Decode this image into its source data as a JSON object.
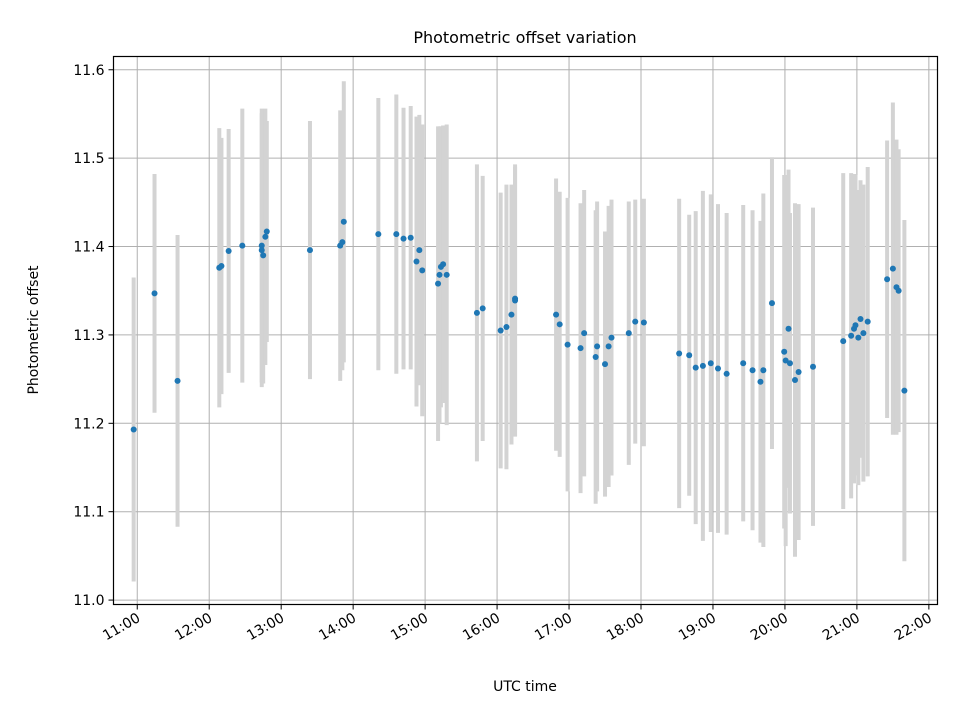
{
  "chart_data": {
    "type": "scatter",
    "title": "Photometric offset variation",
    "xlabel": "UTC time",
    "ylabel": "Photometric offset",
    "x_format": "HH:MM (hours UTC)",
    "xlim": [
      10.67,
      22.12
    ],
    "ylim": [
      10.995,
      11.615
    ],
    "x_ticks": [
      11,
      12,
      13,
      14,
      15,
      16,
      17,
      18,
      19,
      20,
      21,
      22
    ],
    "x_tick_labels": [
      "11:00",
      "12:00",
      "13:00",
      "14:00",
      "15:00",
      "16:00",
      "17:00",
      "18:00",
      "19:00",
      "20:00",
      "21:00",
      "22:00"
    ],
    "y_ticks": [
      11.0,
      11.1,
      11.2,
      11.3,
      11.4,
      11.5,
      11.6
    ],
    "y_tick_labels": [
      "11.0",
      "11.1",
      "11.2",
      "11.3",
      "11.4",
      "11.5",
      "11.6"
    ],
    "grid": true,
    "colors": {
      "points": "#1f77b4",
      "errorbars": "#d3d3d3",
      "grid": "#b0b0b0"
    },
    "series": [
      {
        "x_hours": [
          10.95,
          11.24,
          11.56,
          12.14,
          12.17,
          12.27,
          12.46,
          12.73,
          12.73,
          12.75,
          12.78,
          12.8,
          13.4,
          13.82,
          13.85,
          13.87,
          14.35,
          14.6,
          14.7,
          14.8,
          14.88,
          14.92,
          14.96,
          15.18,
          15.2,
          15.22,
          15.25,
          15.3,
          15.72,
          15.8,
          16.05,
          16.13,
          16.2,
          16.25,
          16.25,
          16.82,
          16.87,
          16.98,
          17.16,
          17.21,
          17.37,
          17.39,
          17.5,
          17.55,
          17.59,
          17.83,
          17.92,
          18.04,
          18.53,
          18.67,
          18.76,
          18.86,
          18.97,
          19.07,
          19.19,
          19.42,
          19.55,
          19.66,
          19.7,
          19.82,
          19.99,
          20.01,
          20.05,
          20.07,
          20.14,
          20.19,
          20.39,
          20.81,
          20.92,
          20.96,
          20.98,
          21.02,
          21.05,
          21.09,
          21.15,
          21.42,
          21.5,
          21.55,
          21.58,
          21.66
        ],
        "y": [
          11.193,
          11.347,
          11.248,
          11.376,
          11.378,
          11.395,
          11.401,
          11.401,
          11.396,
          11.39,
          11.411,
          11.417,
          11.396,
          11.401,
          11.405,
          11.428,
          11.414,
          11.414,
          11.409,
          11.41,
          11.383,
          11.396,
          11.373,
          11.358,
          11.368,
          11.377,
          11.38,
          11.368,
          11.325,
          11.33,
          11.305,
          11.309,
          11.323,
          11.339,
          11.341,
          11.323,
          11.312,
          11.289,
          11.285,
          11.302,
          11.275,
          11.287,
          11.267,
          11.287,
          11.297,
          11.302,
          11.315,
          11.314,
          11.279,
          11.277,
          11.263,
          11.265,
          11.268,
          11.262,
          11.256,
          11.268,
          11.26,
          11.247,
          11.26,
          11.336,
          11.281,
          11.271,
          11.307,
          11.268,
          11.249,
          11.258,
          11.264,
          11.293,
          11.299,
          11.307,
          11.311,
          11.297,
          11.318,
          11.302,
          11.315,
          11.363,
          11.375,
          11.354,
          11.35,
          11.237
        ],
        "yerr": [
          0.172,
          0.135,
          0.165,
          0.158,
          0.145,
          0.138,
          0.155,
          0.155,
          0.155,
          0.145,
          0.145,
          0.125,
          0.146,
          0.153,
          0.145,
          0.159,
          0.154,
          0.158,
          0.148,
          0.149,
          0.164,
          0.153,
          0.165,
          0.178,
          0.168,
          0.159,
          0.157,
          0.17,
          0.168,
          0.15,
          0.156,
          0.161,
          0.147,
          0.154,
          0.149,
          0.154,
          0.15,
          0.166,
          0.164,
          0.162,
          0.166,
          0.164,
          0.15,
          0.159,
          0.156,
          0.149,
          0.138,
          0.14,
          0.175,
          0.159,
          0.177,
          0.198,
          0.191,
          0.186,
          0.182,
          0.179,
          0.181,
          0.182,
          0.2,
          0.165,
          0.2,
          0.21,
          0.18,
          0.17,
          0.2,
          0.19,
          0.18,
          0.19,
          0.184,
          0.175,
          0.17,
          0.167,
          0.157,
          0.168,
          0.175,
          0.157,
          0.188,
          0.167,
          0.16,
          0.193
        ]
      }
    ]
  }
}
